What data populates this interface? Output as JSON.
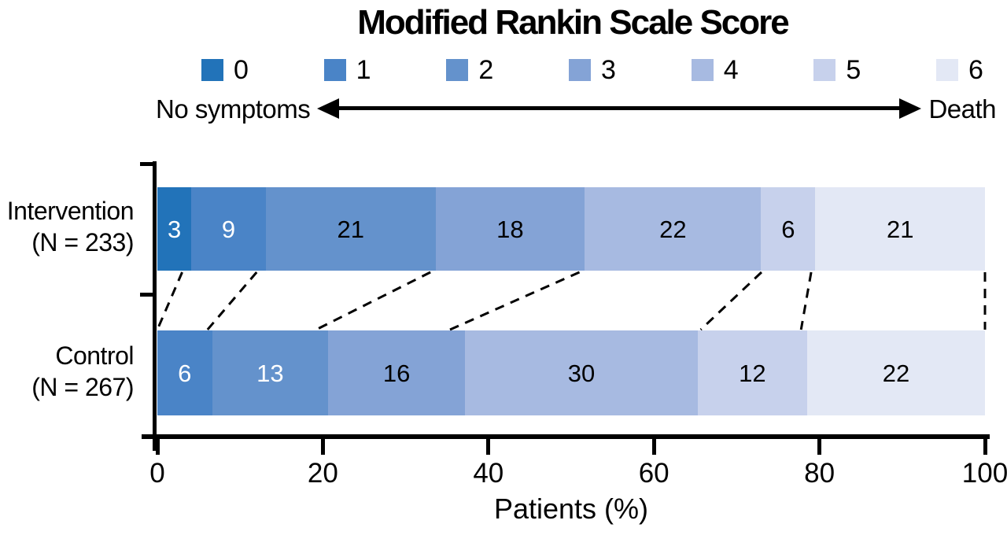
{
  "title": "Modified Rankin Scale Score",
  "legend": {
    "entries": [
      {
        "score": "0",
        "color": "#2273b9"
      },
      {
        "score": "1",
        "color": "#4a84c7"
      },
      {
        "score": "2",
        "color": "#6492cc"
      },
      {
        "score": "3",
        "color": "#84a3d6"
      },
      {
        "score": "4",
        "color": "#a7bae1"
      },
      {
        "score": "5",
        "color": "#c7d1ec"
      },
      {
        "score": "6",
        "color": "#e3e8f5"
      }
    ],
    "left_label": "No symptoms",
    "right_label": "Death"
  },
  "chart_data": {
    "type": "bar",
    "subtype": "horizontal-stacked",
    "title": "Modified Rankin Scale Score",
    "xlabel": "Patients (%)",
    "xlim": [
      0,
      100
    ],
    "x_ticks": [
      0,
      20,
      40,
      60,
      80,
      100
    ],
    "legend_labels": [
      "0",
      "1",
      "2",
      "3",
      "4",
      "5",
      "6"
    ],
    "legend_scale_note": "0 = No symptoms, 6 = Death",
    "rows": [
      {
        "name": "Intervention",
        "n_label": "(N = 233)",
        "values": [
          3,
          9,
          21,
          18,
          22,
          6,
          21
        ],
        "value_label_colors": [
          "#ffffff",
          "#ffffff",
          "#000000",
          "#000000",
          "#000000",
          "#000000",
          "#000000"
        ]
      },
      {
        "name": "Control",
        "n_label": "(N = 267)",
        "values": [
          0,
          6,
          13,
          16,
          30,
          12,
          22
        ],
        "value_label_colors": [
          null,
          "#ffffff",
          "#ffffff",
          "#000000",
          "#000000",
          "#000000",
          "#000000"
        ]
      }
    ],
    "connectors": {
      "style": "dashed",
      "color": "#000000",
      "between": "cumulative segment boundaries of the two bars"
    }
  }
}
